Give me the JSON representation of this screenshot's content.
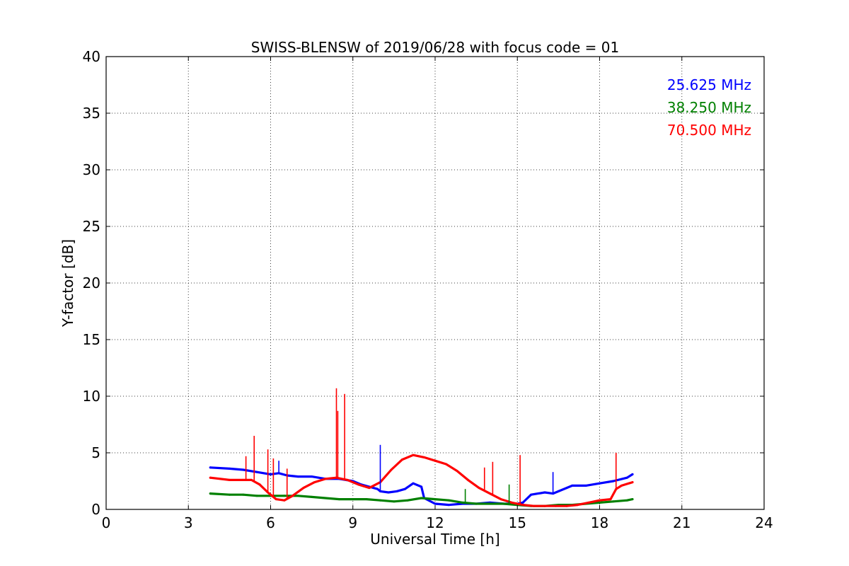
{
  "chart_data": {
    "type": "line",
    "title": "SWISS-BLENSW of 2019/06/28 with focus code = 01",
    "xlabel": "Universal Time [h]",
    "ylabel": "Y-factor [dB]",
    "xlim": [
      0,
      24
    ],
    "ylim": [
      0,
      40
    ],
    "xticks": [
      "0",
      "3",
      "6",
      "9",
      "12",
      "15",
      "18",
      "21",
      "24"
    ],
    "yticks": [
      "0",
      "5",
      "10",
      "15",
      "20",
      "25",
      "30",
      "35",
      "40"
    ],
    "grid": true,
    "legend_position": "top-right",
    "series": [
      {
        "name": "25.625 MHz",
        "color": "#0000ff",
        "x": [
          3.8,
          4.5,
          5.0,
          5.5,
          6.0,
          6.3,
          6.6,
          7.0,
          7.5,
          8.0,
          8.5,
          9.0,
          9.3,
          9.6,
          9.9,
          10.0,
          10.3,
          10.6,
          10.9,
          11.2,
          11.5,
          11.6,
          12.0,
          12.5,
          13.0,
          13.5,
          14.0,
          14.5,
          15.0,
          15.2,
          15.5,
          16.0,
          16.3,
          16.5,
          16.8,
          17.0,
          17.5,
          18.0,
          18.5,
          19.0,
          19.2
        ],
        "y": [
          3.7,
          3.6,
          3.5,
          3.3,
          3.1,
          3.2,
          3.0,
          2.9,
          2.9,
          2.7,
          2.7,
          2.5,
          2.2,
          2.0,
          1.8,
          1.6,
          1.5,
          1.6,
          1.8,
          2.3,
          2.0,
          1.0,
          0.5,
          0.4,
          0.5,
          0.5,
          0.6,
          0.5,
          0.5,
          0.6,
          1.3,
          1.5,
          1.4,
          1.6,
          1.9,
          2.1,
          2.1,
          2.3,
          2.5,
          2.8,
          3.1
        ]
      },
      {
        "name": "38.250 MHz",
        "color": "#008000",
        "x": [
          3.8,
          4.5,
          5.0,
          5.5,
          6.0,
          6.5,
          7.0,
          7.5,
          8.0,
          8.5,
          9.0,
          9.5,
          10.0,
          10.5,
          11.0,
          11.5,
          12.0,
          12.5,
          13.0,
          13.5,
          14.0,
          14.5,
          15.0,
          15.5,
          16.0,
          16.5,
          17.0,
          17.5,
          18.0,
          18.5,
          19.0,
          19.2
        ],
        "y": [
          1.4,
          1.3,
          1.3,
          1.2,
          1.2,
          1.2,
          1.2,
          1.1,
          1.0,
          0.9,
          0.9,
          0.9,
          0.8,
          0.7,
          0.8,
          1.0,
          0.9,
          0.8,
          0.6,
          0.5,
          0.5,
          0.5,
          0.4,
          0.3,
          0.3,
          0.4,
          0.4,
          0.5,
          0.6,
          0.7,
          0.8,
          0.9
        ]
      },
      {
        "name": "70.500 MHz",
        "color": "#ff0000",
        "x": [
          3.8,
          4.5,
          5.0,
          5.3,
          5.6,
          5.9,
          6.2,
          6.5,
          6.8,
          7.2,
          7.6,
          8.0,
          8.4,
          8.8,
          9.2,
          9.6,
          10.0,
          10.4,
          10.8,
          11.2,
          11.6,
          12.0,
          12.4,
          12.8,
          13.2,
          13.6,
          14.0,
          14.4,
          14.8,
          15.2,
          15.6,
          16.0,
          16.4,
          16.8,
          17.2,
          17.6,
          18.0,
          18.4,
          18.6,
          18.8,
          19.2
        ],
        "y": [
          2.8,
          2.6,
          2.6,
          2.6,
          2.2,
          1.5,
          0.9,
          0.8,
          1.2,
          1.9,
          2.4,
          2.7,
          2.8,
          2.6,
          2.2,
          1.9,
          2.4,
          3.5,
          4.4,
          4.8,
          4.6,
          4.3,
          4.0,
          3.4,
          2.6,
          1.9,
          1.4,
          0.9,
          0.6,
          0.4,
          0.3,
          0.3,
          0.3,
          0.3,
          0.4,
          0.6,
          0.8,
          0.9,
          1.8,
          2.1,
          2.4
        ]
      }
    ],
    "spikes": [
      {
        "series": "70.500 MHz",
        "x": 5.4,
        "y": 6.5
      },
      {
        "series": "70.500 MHz",
        "x": 5.1,
        "y": 4.7
      },
      {
        "series": "70.500 MHz",
        "x": 5.9,
        "y": 5.3
      },
      {
        "series": "70.500 MHz",
        "x": 6.1,
        "y": 4.5
      },
      {
        "series": "70.500 MHz",
        "x": 6.6,
        "y": 3.6
      },
      {
        "series": "70.500 MHz",
        "x": 8.4,
        "y": 10.7
      },
      {
        "series": "70.500 MHz",
        "x": 8.45,
        "y": 8.7
      },
      {
        "series": "70.500 MHz",
        "x": 8.7,
        "y": 10.2
      },
      {
        "series": "70.500 MHz",
        "x": 13.8,
        "y": 3.7
      },
      {
        "series": "70.500 MHz",
        "x": 14.1,
        "y": 4.2
      },
      {
        "series": "70.500 MHz",
        "x": 15.1,
        "y": 4.8
      },
      {
        "series": "70.500 MHz",
        "x": 18.6,
        "y": 5.0
      },
      {
        "series": "25.625 MHz",
        "x": 6.3,
        "y": 4.3
      },
      {
        "series": "25.625 MHz",
        "x": 10.0,
        "y": 5.7
      },
      {
        "series": "25.625 MHz",
        "x": 16.3,
        "y": 3.3
      },
      {
        "series": "38.250 MHz",
        "x": 13.1,
        "y": 1.8
      },
      {
        "series": "38.250 MHz",
        "x": 14.7,
        "y": 2.2
      }
    ]
  }
}
